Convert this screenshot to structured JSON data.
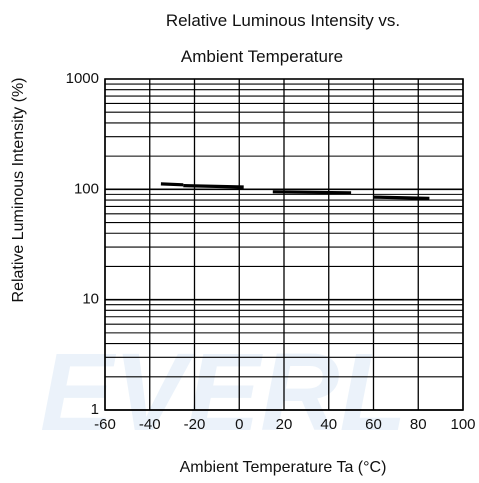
{
  "chart_data": {
    "type": "line",
    "title_lines": [
      "Relative Luminous Intensity vs.",
      "Ambient Temperature"
    ],
    "xlabel": "Ambient Temperature Ta (°C)",
    "ylabel": "Relative Luminous Intensity  (%)",
    "xlim": [
      -60,
      100
    ],
    "ylim": [
      1,
      1000
    ],
    "yscale": "log",
    "grid": true,
    "x_ticks": [
      -60,
      -40,
      -20,
      0,
      20,
      40,
      60,
      80,
      100
    ],
    "x_tick_labels": [
      "-60",
      "-40",
      "-20",
      "0",
      "20",
      "40",
      "60",
      "80",
      "100"
    ],
    "y_ticks": [
      1,
      10,
      100,
      1000
    ],
    "y_tick_labels": [
      "1",
      "10",
      "100",
      "1000"
    ],
    "series": [
      {
        "segments": [
          {
            "x": [
              -35,
              -25
            ],
            "y": [
              112,
              110
            ]
          },
          {
            "x": [
              -25,
              2
            ],
            "y": [
              108,
              105
            ]
          },
          {
            "x": [
              15,
              50
            ],
            "y": [
              95,
              93
            ]
          },
          {
            "x": [
              60,
              85
            ],
            "y": [
              85,
              83
            ]
          }
        ]
      }
    ],
    "watermark": "EVERL",
    "line_color": "#000000",
    "grid_color": "#000000"
  }
}
